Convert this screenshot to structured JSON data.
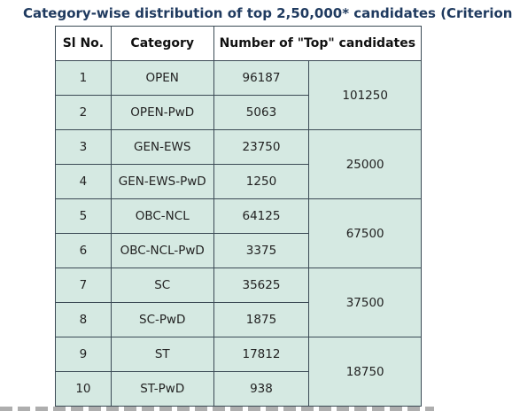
{
  "heading": "Category-wise distribution of top 2,50,000* candidates (Criterion",
  "table": {
    "headers": [
      "Sl No.",
      "Category",
      "Number of \"Top\" candidates"
    ],
    "rows": [
      {
        "sl": "1",
        "category": "OPEN",
        "count": "96187"
      },
      {
        "sl": "2",
        "category": "OPEN-PwD",
        "count": "5063"
      },
      {
        "sl": "3",
        "category": "GEN-EWS",
        "count": "23750"
      },
      {
        "sl": "4",
        "category": "GEN-EWS-PwD",
        "count": "1250"
      },
      {
        "sl": "5",
        "category": "OBC-NCL",
        "count": "64125"
      },
      {
        "sl": "6",
        "category": "OBC-NCL-PwD",
        "count": "3375"
      },
      {
        "sl": "7",
        "category": "SC",
        "count": "35625"
      },
      {
        "sl": "8",
        "category": "SC-PwD",
        "count": "1875"
      },
      {
        "sl": "9",
        "category": "ST",
        "count": "17812"
      },
      {
        "sl": "10",
        "category": "ST-PwD",
        "count": "938"
      }
    ],
    "group_totals": [
      "101250",
      "25000",
      "67500",
      "37500",
      "18750"
    ]
  },
  "colors": {
    "heading": "#1f3a5f",
    "cell_background": "#d5e9e2",
    "border": "#3b4a55"
  }
}
